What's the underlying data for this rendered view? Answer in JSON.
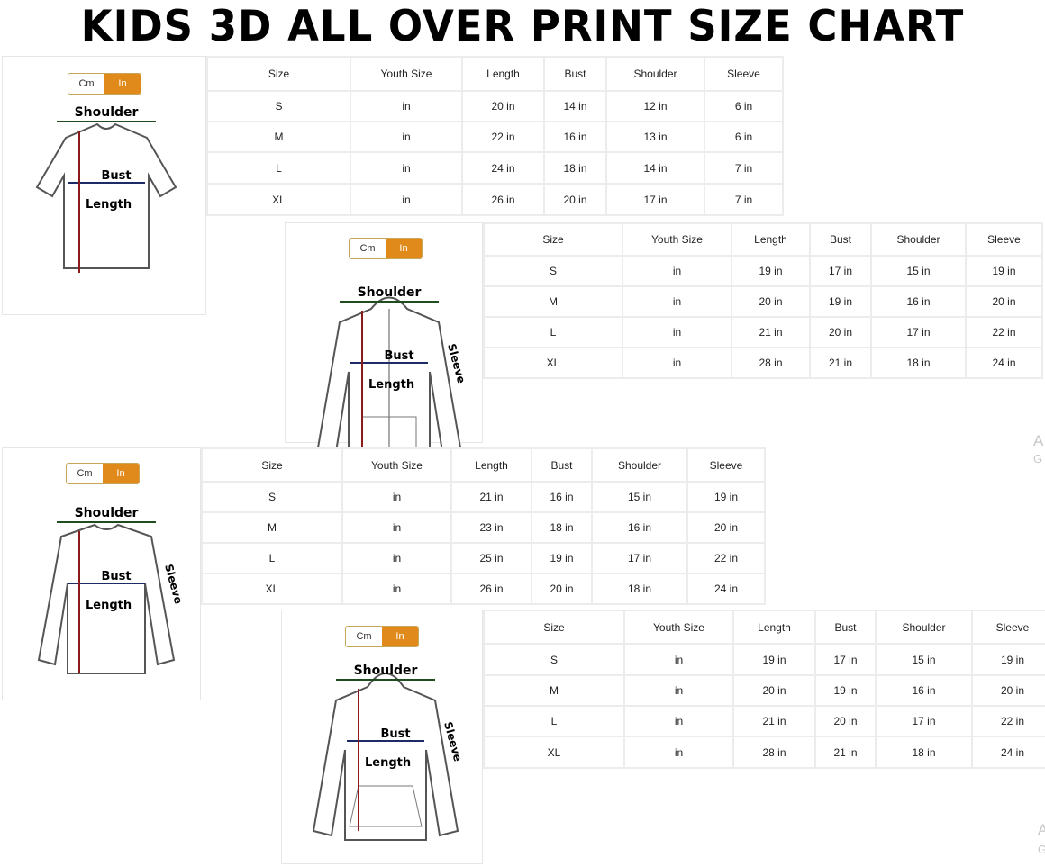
{
  "title": "KIDS 3D ALL OVER PRINT SIZE CHART",
  "unit_toggle": {
    "cm": "Cm",
    "in": "In",
    "selected": "In",
    "active_color": "#e08a1b"
  },
  "columns": [
    "Size",
    "Youth Size",
    "Length",
    "Bust",
    "Shoulder",
    "Sleeve"
  ],
  "panels": [
    {
      "garment": "t-shirt",
      "labels": {
        "shoulder": "Shoulder",
        "bust": "Bust",
        "length": "Length"
      },
      "rows": [
        [
          "S",
          "in",
          "20 in",
          "14 in",
          "12 in",
          "6 in"
        ],
        [
          "M",
          "in",
          "22 in",
          "16 in",
          "13 in",
          "6 in"
        ],
        [
          "L",
          "in",
          "24 in",
          "18 in",
          "14 in",
          "7 in"
        ],
        [
          "XL",
          "in",
          "26 in",
          "20 in",
          "17 in",
          "7 in"
        ]
      ]
    },
    {
      "garment": "zip-hoodie",
      "labels": {
        "shoulder": "Shoulder",
        "bust": "Bust",
        "length": "Length",
        "sleeve": "Sleeve"
      },
      "rows": [
        [
          "S",
          "in",
          "19 in",
          "17 in",
          "15 in",
          "19 in"
        ],
        [
          "M",
          "in",
          "20 in",
          "19 in",
          "16 in",
          "20 in"
        ],
        [
          "L",
          "in",
          "21 in",
          "20 in",
          "17 in",
          "22 in"
        ],
        [
          "XL",
          "in",
          "28 in",
          "21 in",
          "18 in",
          "24 in"
        ]
      ]
    },
    {
      "garment": "long-sleeve-shirt",
      "labels": {
        "shoulder": "Shoulder",
        "bust": "Bust",
        "length": "Length",
        "sleeve": "Sleeve"
      },
      "rows": [
        [
          "S",
          "in",
          "21 in",
          "16 in",
          "15 in",
          "19 in"
        ],
        [
          "M",
          "in",
          "23 in",
          "18 in",
          "16 in",
          "20 in"
        ],
        [
          "L",
          "in",
          "25 in",
          "19 in",
          "17 in",
          "22 in"
        ],
        [
          "XL",
          "in",
          "26 in",
          "20 in",
          "18 in",
          "24 in"
        ]
      ]
    },
    {
      "garment": "pullover-hoodie",
      "labels": {
        "shoulder": "Shoulder",
        "bust": "Bust",
        "length": "Length",
        "sleeve": "Sleeve"
      },
      "rows": [
        [
          "S",
          "in",
          "19 in",
          "17 in",
          "15 in",
          "19 in"
        ],
        [
          "M",
          "in",
          "20 in",
          "19 in",
          "16 in",
          "20 in"
        ],
        [
          "L",
          "in",
          "21 in",
          "20 in",
          "17 in",
          "22 in"
        ],
        [
          "XL",
          "in",
          "28 in",
          "21 in",
          "18 in",
          "24 in"
        ]
      ]
    }
  ],
  "watermark": {
    "line1": "A",
    "line2": "G"
  }
}
